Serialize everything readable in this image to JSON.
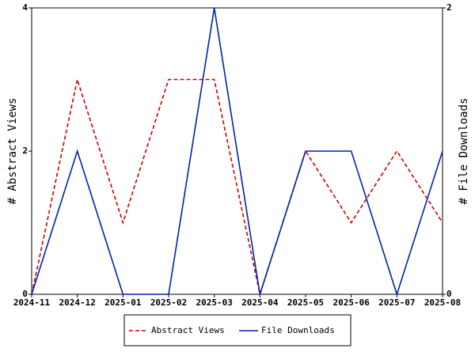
{
  "chart_data": {
    "type": "line",
    "categories": [
      "2024-11",
      "2024-12",
      "2025-01",
      "2025-02",
      "2025-03",
      "2025-04",
      "2025-05",
      "2025-06",
      "2025-07",
      "2025-08"
    ],
    "y_label": "# Abstract Views",
    "y2_label": "# File Downloads",
    "ylim": [
      0,
      4
    ],
    "yticks": [
      0,
      2,
      4
    ],
    "y2lim": [
      0,
      2
    ],
    "y2ticks": [
      0,
      2
    ],
    "grid": false,
    "legend": "bottom",
    "series": [
      {
        "name": "Abstract Views",
        "color": "#cc0000",
        "dash": true,
        "values": [
          0,
          3,
          1,
          3,
          3,
          0,
          2,
          1,
          2,
          1
        ]
      },
      {
        "name": "File Downloads",
        "color": "#0022aa",
        "dash": false,
        "axis": "y2",
        "values": [
          0,
          1,
          0,
          0,
          2,
          0,
          1,
          1,
          0,
          1
        ]
      }
    ]
  }
}
